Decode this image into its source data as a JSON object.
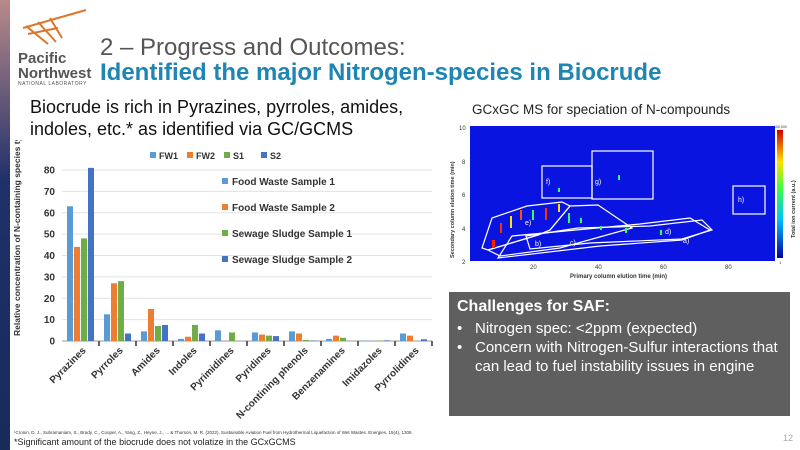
{
  "header": {
    "logo": [
      "Pacific",
      "Northwest",
      "NATIONAL LABORATORY"
    ],
    "title": "2 – Progress and Outcomes:",
    "subtitle": "Identified the major Nitrogen-species in Biocrude"
  },
  "intro": "Biocrude is rich in Pyrazines, pyrroles, amides, indoles, etc.* as identified via GC/GCMS",
  "chart_data": {
    "type": "bar",
    "ylabel": "Relative concentration of N-containing species type (%)",
    "ylim": [
      0,
      80
    ],
    "yticks": [
      0,
      10,
      20,
      30,
      40,
      50,
      60,
      70,
      80
    ],
    "categories": [
      "Pyrazines",
      "Pyrroles",
      "Amides",
      "Indoles",
      "Pyrimidines",
      "Pyridines",
      "N-contining phenols",
      "Benzenamines",
      "Imidazoles",
      "Pyrrolidines"
    ],
    "series": [
      {
        "name": "FW1",
        "label": "Food Waste Sample 1",
        "color": "#5b9bd5",
        "values": [
          63,
          12.5,
          4.5,
          1,
          5,
          4,
          4.5,
          1,
          0.2,
          3.5
        ]
      },
      {
        "name": "FW2",
        "label": "Food Waste Sample 2",
        "color": "#ed7d31",
        "values": [
          44,
          27,
          15,
          2,
          0,
          3,
          3.5,
          2.5,
          0,
          2.5
        ]
      },
      {
        "name": "S1",
        "label": "Sewage Sludge Sample 1",
        "color": "#70ad47",
        "values": [
          48,
          28,
          7,
          7.5,
          4,
          2.5,
          0.5,
          1.5,
          0.2,
          0
        ]
      },
      {
        "name": "S2",
        "label": "Sewage Sludge Sample 2",
        "color": "#4472c4",
        "values": [
          81,
          3.5,
          7.5,
          3.5,
          0,
          2.3,
          0.2,
          0,
          0.3,
          0.8
        ]
      }
    ],
    "legend": "top"
  },
  "gc": {
    "title": "GCxGC MS for speciation of N-compounds",
    "xlabel": "Primary column elution time (min)",
    "ylabel": "Secondary column elution time (min)",
    "xticks": [
      "20",
      "40",
      "60",
      "80"
    ],
    "yticks": [
      "2",
      "4",
      "6",
      "8",
      "10"
    ],
    "colorbar_label": "Total ion current (a.u.)",
    "colorbar_max": "100,000",
    "colorbar_min": "1",
    "regions": [
      "a)",
      "b)",
      "c)",
      "d)",
      "e)",
      "f)",
      "g)",
      "h)"
    ]
  },
  "challenges": {
    "title": "Challenges for SAF:",
    "items": [
      "Nitrogen spec: <2ppm (expected)",
      "Concern with Nitrogen-Sulfur interactions that can lead to fuel instability issues in engine"
    ]
  },
  "reference": "¹Cronin, D. J., Subramaniam, S., Brady, C., Cooper, A., Yang, Z., Heyne, J., ... & Thorson, M. R. (2022). Sustainable Aviation Fuel from Hydrothermal Liquefaction of Wet Wastes. Energies, 15(4), 1306.",
  "footnote": "*Significant amount of the biocrude does not volatize in the GCxGCMS",
  "page_number": "12"
}
